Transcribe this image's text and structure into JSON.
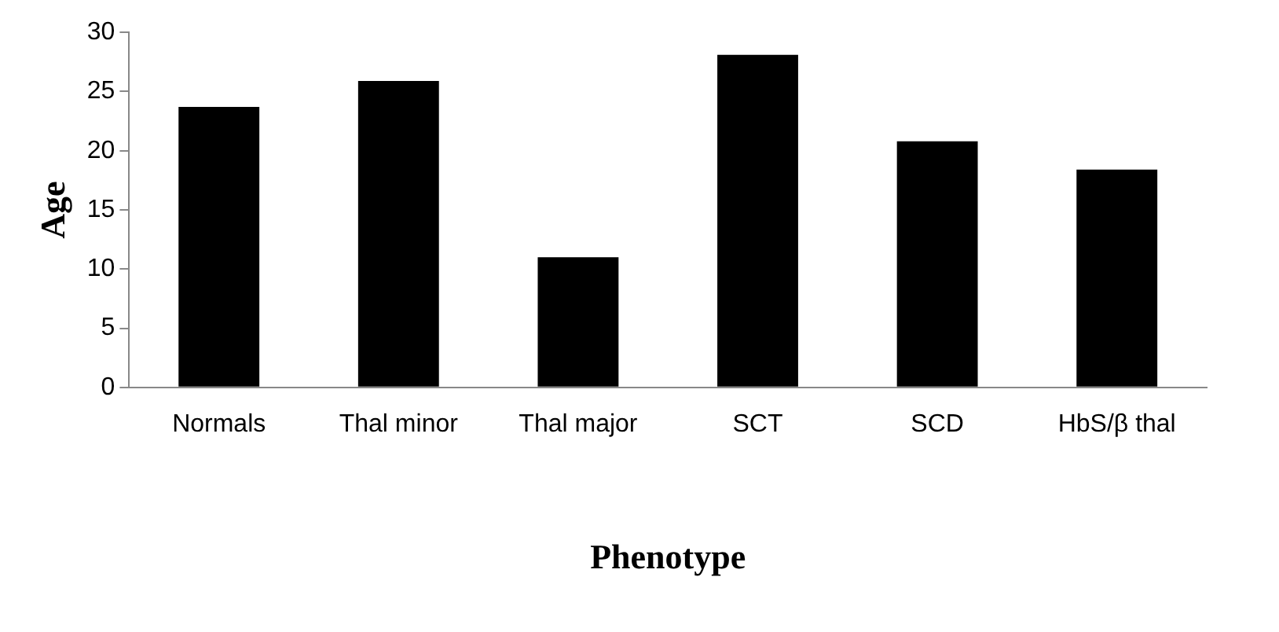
{
  "chart_data": {
    "type": "bar",
    "xlabel": "Phenotype",
    "ylabel": "Age",
    "categories": [
      "Normals",
      "Thal minor",
      "Thal major",
      "SCT",
      "SCD",
      "HbS/β thal"
    ],
    "values": [
      23.7,
      25.9,
      11.0,
      28.1,
      20.8,
      18.4
    ],
    "color": "#000000",
    "ylim": [
      0,
      30
    ],
    "yticks": [
      0,
      5,
      10,
      15,
      20,
      25,
      30
    ],
    "grid": false,
    "legend": false
  }
}
